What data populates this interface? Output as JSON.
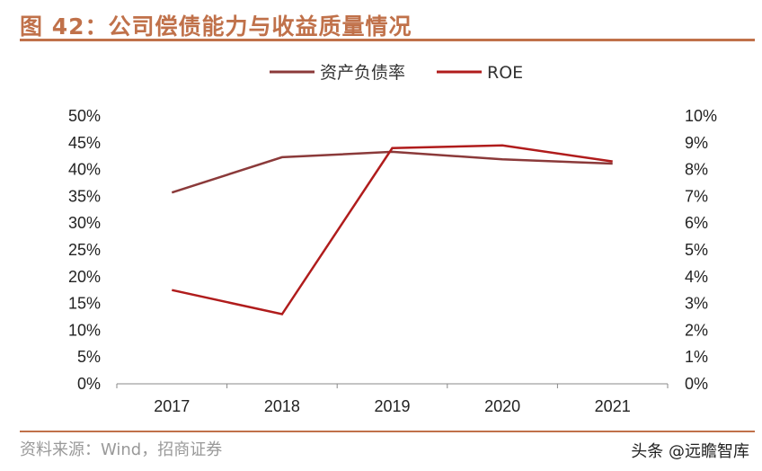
{
  "title": "图 42：公司偿债能力与收益质量情况",
  "source": "资料来源：Wind，招商证券",
  "watermark": "头条 @远瞻智库",
  "chart_data": {
    "type": "line",
    "categories": [
      "2017",
      "2018",
      "2019",
      "2020",
      "2021"
    ],
    "series": [
      {
        "name": "资产负债率",
        "axis": "left",
        "color": "#8b3a3a",
        "values": [
          35.7,
          42.3,
          43.3,
          41.9,
          41.1
        ]
      },
      {
        "name": "ROE",
        "axis": "right",
        "color": "#b01c1c",
        "values": [
          3.5,
          2.6,
          8.8,
          8.9,
          8.3
        ]
      }
    ],
    "y_left": {
      "range": [
        0,
        50
      ],
      "ticks": [
        "0%",
        "5%",
        "10%",
        "15%",
        "20%",
        "25%",
        "30%",
        "35%",
        "40%",
        "45%",
        "50%"
      ]
    },
    "y_right": {
      "range": [
        0,
        10
      ],
      "ticks": [
        "0%",
        "1%",
        "2%",
        "3%",
        "4%",
        "5%",
        "6%",
        "7%",
        "8%",
        "9%",
        "10%"
      ]
    },
    "legend": "top-center",
    "grid": false
  }
}
